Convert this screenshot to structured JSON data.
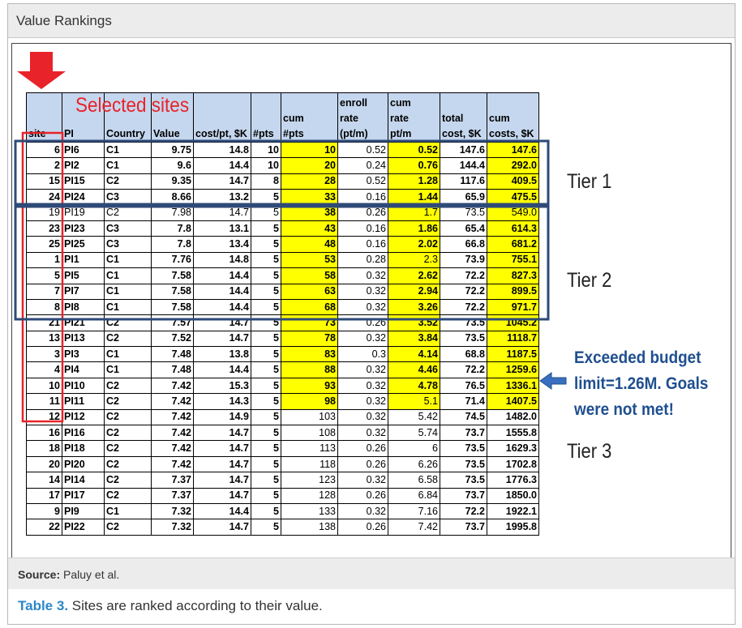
{
  "title": "Value Rankings",
  "annotations": {
    "selected_sites": "Selected sites",
    "tier1": "Tier 1",
    "tier2": "Tier 2",
    "tier3": "Tier 3",
    "exceeded_line1": "Exceeded budget",
    "exceeded_line2": "limit=1.26M. Goals",
    "exceeded_line3": "were not met!",
    "arrow_color": "#e8232a",
    "box_color": "#2e4a78"
  },
  "table": {
    "headers": [
      {
        "lines": [
          "",
          "",
          "site"
        ]
      },
      {
        "lines": [
          "",
          "",
          "PI"
        ]
      },
      {
        "lines": [
          "",
          "",
          "Country"
        ]
      },
      {
        "lines": [
          "",
          "",
          "Value"
        ]
      },
      {
        "lines": [
          "",
          "",
          "cost/pt, $K"
        ]
      },
      {
        "lines": [
          "",
          "",
          "#pts"
        ]
      },
      {
        "lines": [
          "",
          "cum",
          "#pts"
        ]
      },
      {
        "lines": [
          "enroll",
          "rate",
          "(pt/m)"
        ]
      },
      {
        "lines": [
          "cum",
          "rate",
          "pt/m"
        ]
      },
      {
        "lines": [
          "",
          "total",
          "cost, $K"
        ]
      },
      {
        "lines": [
          "",
          "cum",
          "costs, $K"
        ]
      }
    ],
    "rows": [
      [
        "6",
        "PI6",
        "C1",
        "9.75",
        "14.8",
        "10",
        "10",
        "0.52",
        "0.52",
        "147.6",
        "147.6"
      ],
      [
        "2",
        "PI2",
        "C1",
        "9.6",
        "14.4",
        "10",
        "20",
        "0.24",
        "0.76",
        "144.4",
        "292.0"
      ],
      [
        "15",
        "PI15",
        "C2",
        "9.35",
        "14.7",
        "8",
        "28",
        "0.52",
        "1.28",
        "117.6",
        "409.5"
      ],
      [
        "24",
        "PI24",
        "C3",
        "8.66",
        "13.2",
        "5",
        "33",
        "0.16",
        "1.44",
        "65.9",
        "475.5"
      ],
      [
        "19",
        "PI19",
        "C2",
        "7.98",
        "14.7",
        "5",
        "38",
        "0.26",
        "1.7",
        "73.5",
        "549.0"
      ],
      [
        "23",
        "PI23",
        "C3",
        "7.8",
        "13.1",
        "5",
        "43",
        "0.16",
        "1.86",
        "65.4",
        "614.3"
      ],
      [
        "25",
        "PI25",
        "C3",
        "7.8",
        "13.4",
        "5",
        "48",
        "0.16",
        "2.02",
        "66.8",
        "681.2"
      ],
      [
        "1",
        "PI1",
        "C1",
        "7.76",
        "14.8",
        "5",
        "53",
        "0.28",
        "2.3",
        "73.9",
        "755.1"
      ],
      [
        "5",
        "PI5",
        "C1",
        "7.58",
        "14.4",
        "5",
        "58",
        "0.32",
        "2.62",
        "72.2",
        "827.3"
      ],
      [
        "7",
        "PI7",
        "C1",
        "7.58",
        "14.4",
        "5",
        "63",
        "0.32",
        "2.94",
        "72.2",
        "899.5"
      ],
      [
        "8",
        "PI8",
        "C1",
        "7.58",
        "14.4",
        "5",
        "68",
        "0.32",
        "3.26",
        "72.2",
        "971.7"
      ],
      [
        "21",
        "PI21",
        "C2",
        "7.57",
        "14.7",
        "5",
        "73",
        "0.26",
        "3.52",
        "73.5",
        "1045.2"
      ],
      [
        "13",
        "PI13",
        "C2",
        "7.52",
        "14.7",
        "5",
        "78",
        "0.32",
        "3.84",
        "73.5",
        "1118.7"
      ],
      [
        "3",
        "PI3",
        "C1",
        "7.48",
        "13.8",
        "5",
        "83",
        "0.3",
        "4.14",
        "68.8",
        "1187.5"
      ],
      [
        "4",
        "PI4",
        "C1",
        "7.48",
        "14.4",
        "5",
        "88",
        "0.32",
        "4.46",
        "72.2",
        "1259.6"
      ],
      [
        "10",
        "PI10",
        "C2",
        "7.42",
        "15.3",
        "5",
        "93",
        "0.32",
        "4.78",
        "76.5",
        "1336.1"
      ],
      [
        "11",
        "PI11",
        "C2",
        "7.42",
        "14.3",
        "5",
        "98",
        "0.32",
        "5.1",
        "71.4",
        "1407.5"
      ],
      [
        "12",
        "PI12",
        "C2",
        "7.42",
        "14.9",
        "5",
        "103",
        "0.32",
        "5.42",
        "74.5",
        "1482.0"
      ],
      [
        "16",
        "PI16",
        "C2",
        "7.42",
        "14.7",
        "5",
        "108",
        "0.32",
        "5.74",
        "73.7",
        "1555.8"
      ],
      [
        "18",
        "PI18",
        "C2",
        "7.42",
        "14.7",
        "5",
        "113",
        "0.26",
        "6",
        "73.5",
        "1629.3"
      ],
      [
        "20",
        "PI20",
        "C2",
        "7.42",
        "14.7",
        "5",
        "118",
        "0.26",
        "6.26",
        "73.5",
        "1702.8"
      ],
      [
        "14",
        "PI14",
        "C2",
        "7.37",
        "14.7",
        "5",
        "123",
        "0.32",
        "6.58",
        "73.5",
        "1776.3"
      ],
      [
        "17",
        "PI17",
        "C2",
        "7.37",
        "14.7",
        "5",
        "128",
        "0.26",
        "6.84",
        "73.7",
        "1850.0"
      ],
      [
        "9",
        "PI9",
        "C1",
        "7.32",
        "14.4",
        "5",
        "133",
        "0.32",
        "7.16",
        "72.2",
        "1922.1"
      ],
      [
        "22",
        "PI22",
        "C2",
        "7.32",
        "14.7",
        "5",
        "138",
        "0.26",
        "7.42",
        "73.7",
        "1995.8"
      ]
    ],
    "highlight_color": "#ffff00",
    "header_highlight_color": "#c5d7ee"
  },
  "source": {
    "label": "Source:",
    "text": " Paluy et al."
  },
  "caption": {
    "label": "Table 3.",
    "text": " Sites are ranked according to their value."
  }
}
